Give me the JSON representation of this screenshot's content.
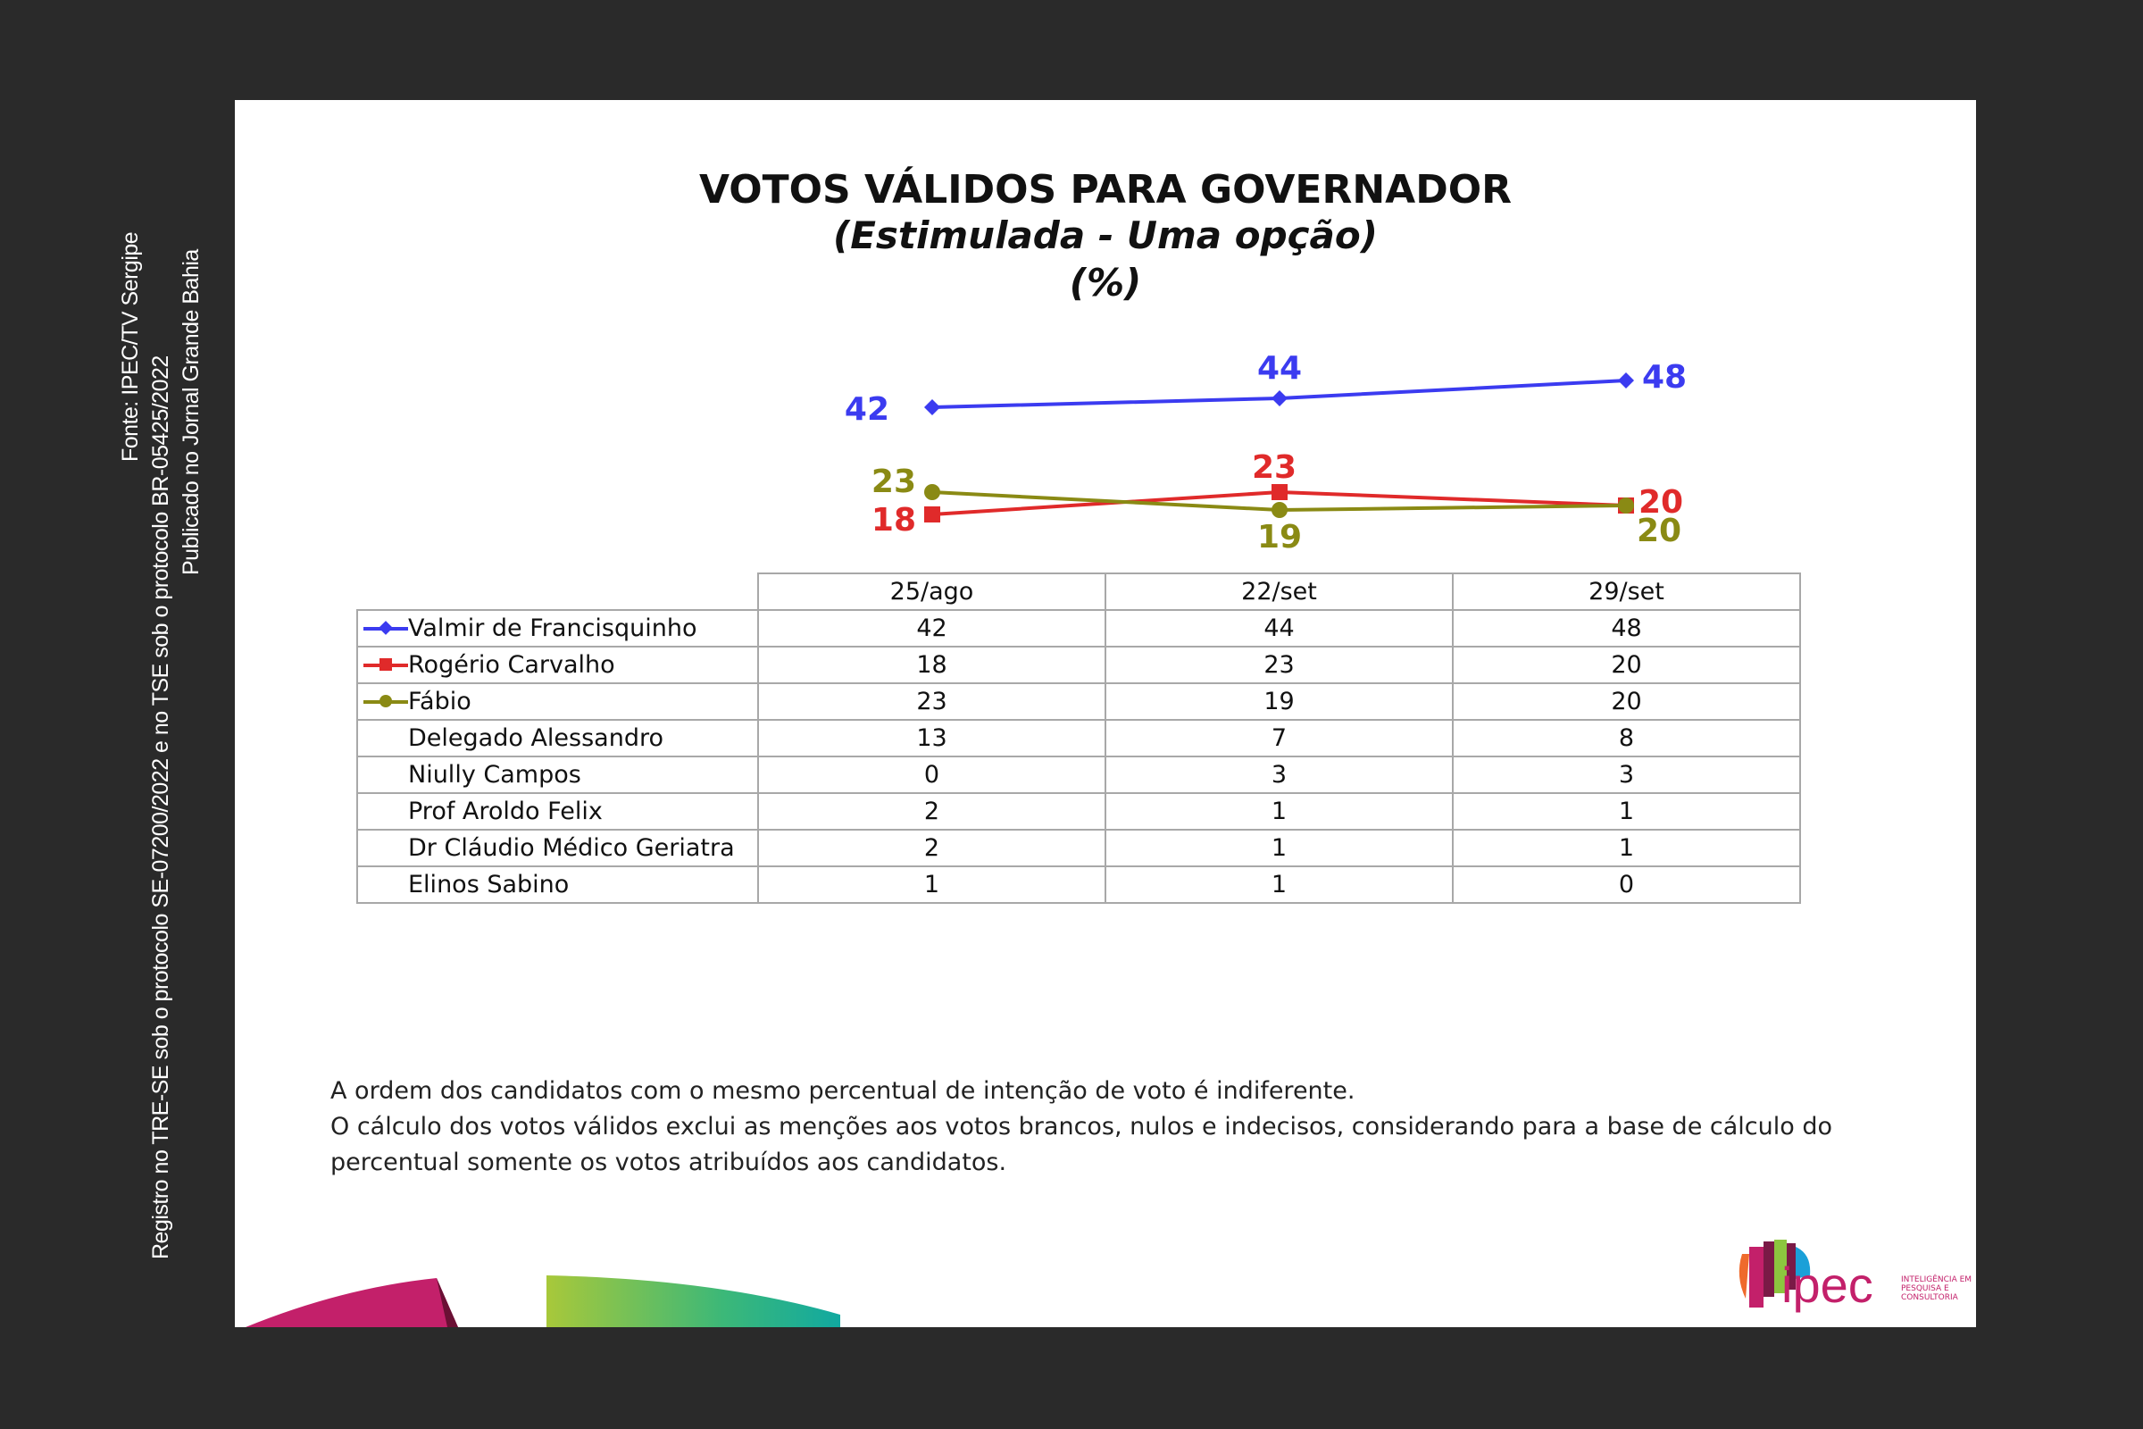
{
  "side_notes": {
    "line1": "Fonte: IPEC/TV Sergipe",
    "line2": "Registro no TRE-SE sob o protocolo SE-07200/2022 e no TSE sob o protocolo BR-05425/2022",
    "line3": "Publicado no Jornal Grande Bahia"
  },
  "chart_data": {
    "type": "line",
    "title": "VOTOS VÁLIDOS PARA GOVERNADOR",
    "subtitle": "(Estimulada - Uma opção)",
    "unit": "(%)",
    "categories": [
      "25/ago",
      "22/set",
      "29/set"
    ],
    "series": [
      {
        "name": "Valmir de Francisquinho",
        "values": [
          42,
          44,
          48
        ],
        "color": "#3b3bf0",
        "marker": "diamond"
      },
      {
        "name": "Rogério Carvalho",
        "values": [
          18,
          23,
          20
        ],
        "color": "#e02a2a",
        "marker": "square"
      },
      {
        "name": "Fábio",
        "values": [
          23,
          19,
          20
        ],
        "color": "#8a8a14",
        "marker": "circle"
      }
    ],
    "table": {
      "headers": [
        "25/ago",
        "22/set",
        "29/set"
      ],
      "rows": [
        {
          "name": "Valmir de Francisquinho",
          "values": [
            "42",
            "44",
            "48"
          ],
          "legend": 0
        },
        {
          "name": "Rogério Carvalho",
          "values": [
            "18",
            "23",
            "20"
          ],
          "legend": 1
        },
        {
          "name": "Fábio",
          "values": [
            "23",
            "19",
            "20"
          ],
          "legend": 2
        },
        {
          "name": "Delegado Alessandro",
          "values": [
            "13",
            "7",
            "8"
          ]
        },
        {
          "name": "Niully Campos",
          "values": [
            "0",
            "3",
            "3"
          ]
        },
        {
          "name": "Prof Aroldo Felix",
          "values": [
            "2",
            "1",
            "1"
          ]
        },
        {
          "name": "Dr Cláudio Médico Geriatra",
          "values": [
            "2",
            "1",
            "1"
          ]
        },
        {
          "name": "Elinos Sabino",
          "values": [
            "1",
            "1",
            "0"
          ]
        }
      ]
    }
  },
  "footnotes": {
    "line1": "A ordem dos candidatos com o mesmo percentual de intenção de voto é indiferente.",
    "line2": "O cálculo dos votos válidos exclui as menções aos votos brancos, nulos e indecisos, considerando para a base de cálculo do percentual somente os votos atribuídos aos candidatos."
  },
  "logo": {
    "text": "ipec",
    "tagline": "INTELIGÊNCIA EM PESQUISA E CONSULTORIA"
  }
}
